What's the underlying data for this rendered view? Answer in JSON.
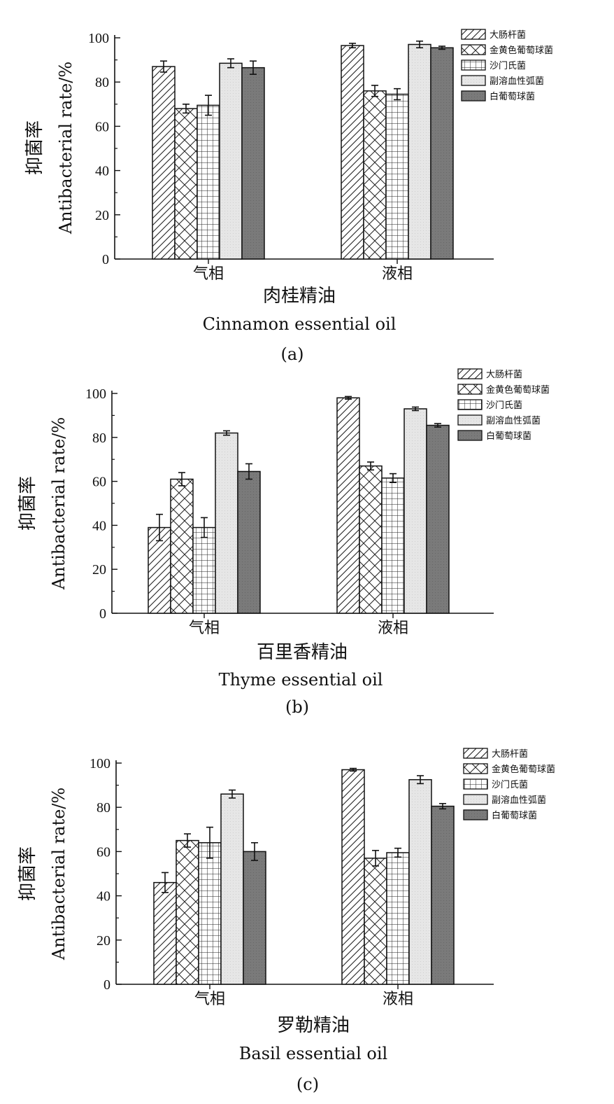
{
  "chart_data": [
    {
      "type": "bar",
      "panel_label": "(a)",
      "title_cn": "肉桂精油",
      "title_en": "Cinnamon essential oil",
      "ylabel_cn": "抑菌率",
      "ylabel_en": "Antibacterial rate/%",
      "ylim": [
        0,
        100
      ],
      "yticks": [
        0,
        20,
        40,
        60,
        80,
        100
      ],
      "categories": [
        "气相",
        "液相"
      ],
      "legend_position": "top-right",
      "series": [
        {
          "name": "大肠杆菌",
          "values": [
            87,
            96.5
          ],
          "errors": [
            2.5,
            1
          ]
        },
        {
          "name": "金黄色葡萄球菌",
          "values": [
            68,
            76
          ],
          "errors": [
            2,
            2.5
          ]
        },
        {
          "name": "沙门氏菌",
          "values": [
            69.5,
            74.5
          ],
          "errors": [
            4.5,
            2.5
          ]
        },
        {
          "name": "副溶血性弧菌",
          "values": [
            88.5,
            97
          ],
          "errors": [
            2,
            1.5
          ]
        },
        {
          "name": "白葡萄球菌",
          "values": [
            86.5,
            95.5
          ],
          "errors": [
            3,
            0.7
          ]
        }
      ]
    },
    {
      "type": "bar",
      "panel_label": "(b)",
      "title_cn": "百里香精油",
      "title_en": "Thyme essential oil",
      "ylabel_cn": "抑菌率",
      "ylabel_en": "Antibacterial rate/%",
      "ylim": [
        0,
        100
      ],
      "yticks": [
        0,
        20,
        40,
        60,
        80,
        100
      ],
      "categories": [
        "气相",
        "液相"
      ],
      "legend_position": "top-right",
      "series": [
        {
          "name": "大肠杆菌",
          "values": [
            39,
            98
          ],
          "errors": [
            6,
            0.6
          ]
        },
        {
          "name": "金黄色葡萄球菌",
          "values": [
            61,
            67
          ],
          "errors": [
            3,
            1.8
          ]
        },
        {
          "name": "沙门氏菌",
          "values": [
            39,
            61.5
          ],
          "errors": [
            4.5,
            2
          ]
        },
        {
          "name": "副溶血性弧菌",
          "values": [
            82,
            93
          ],
          "errors": [
            1,
            0.8
          ]
        },
        {
          "name": "白葡萄球菌",
          "values": [
            64.5,
            85.5
          ],
          "errors": [
            3.5,
            0.8
          ]
        }
      ]
    },
    {
      "type": "bar",
      "panel_label": "(c)",
      "title_cn": "罗勒精油",
      "title_en": "Basil essential oil",
      "ylabel_cn": "抑菌率",
      "ylabel_en": "Antibacterial rate/%",
      "ylim": [
        0,
        100
      ],
      "yticks": [
        0,
        20,
        40,
        60,
        80,
        100
      ],
      "categories": [
        "气相",
        "液相"
      ],
      "legend_position": "top-right",
      "series": [
        {
          "name": "大肠杆菌",
          "values": [
            46,
            97
          ],
          "errors": [
            4.5,
            0.6
          ]
        },
        {
          "name": "金黄色葡萄球菌",
          "values": [
            65,
            57
          ],
          "errors": [
            3,
            3.5
          ]
        },
        {
          "name": "沙门氏菌",
          "values": [
            64,
            59.5
          ],
          "errors": [
            7,
            2
          ]
        },
        {
          "name": "副溶血性弧菌",
          "values": [
            86,
            92.5
          ],
          "errors": [
            1.8,
            1.8
          ]
        },
        {
          "name": "白葡萄球菌",
          "values": [
            60,
            80.5
          ],
          "errors": [
            4,
            1.2
          ]
        }
      ]
    }
  ]
}
